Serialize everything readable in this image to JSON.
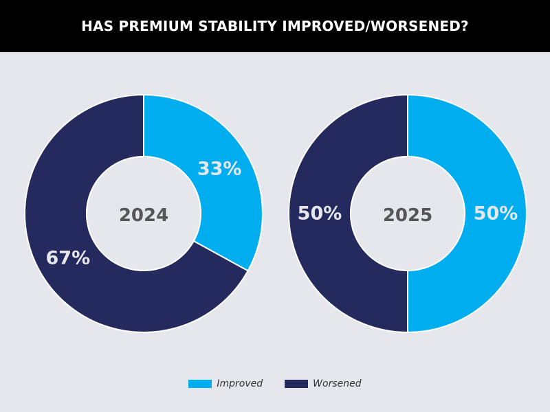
{
  "header": {
    "title": "HAS PREMIUM STABILITY IMPROVED/WORSENED?"
  },
  "colors": {
    "improved": "#00adef",
    "worsened": "#242a5e",
    "center_text": "#555555",
    "slice_text": "#e6e7ed",
    "background": "#e6e7ed"
  },
  "chart_data": [
    {
      "type": "pie",
      "center_label": "2024",
      "categories": [
        "Improved",
        "Worsened"
      ],
      "values": [
        33,
        67
      ],
      "labels": [
        "33%",
        "67%"
      ]
    },
    {
      "type": "pie",
      "center_label": "2025",
      "categories": [
        "Improved",
        "Worsened"
      ],
      "values": [
        50,
        50
      ],
      "labels": [
        "50%",
        "50%"
      ]
    }
  ],
  "legend": {
    "items": [
      {
        "label": "Improved",
        "color": "#00adef"
      },
      {
        "label": "Worsened",
        "color": "#242a5e"
      }
    ]
  }
}
